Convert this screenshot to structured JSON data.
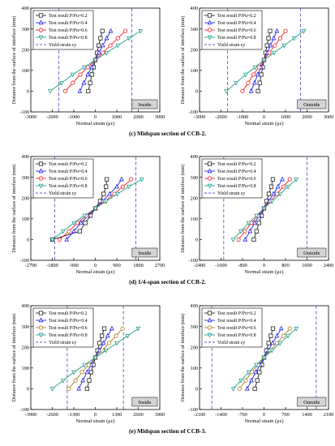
{
  "legend": {
    "entries": [
      "Test result P/Pu=0.2",
      "Test result P/Pu=0.4",
      "Test result P/Pu=0.6",
      "Test result P/Pu=0.8",
      "Yield strain εy"
    ]
  },
  "common": {
    "ylabel": "Distance from the surface of interface (mm)",
    "xlabel": "Normal strain (με)"
  },
  "colors": {
    "p02": "#222222",
    "p04": "#2222ee",
    "p06": "#ee2222",
    "p06_e": "#b07a1e",
    "p08": "#1f9e8c",
    "yield": "#6a55c8"
  },
  "rows": [
    {
      "caption": "(c) Midspan section of CCB-2.",
      "panels": [
        {
          "tag": "Inside",
          "chart_data": {
            "type": "line",
            "xlabel": "Normal strain (με)",
            "ylabel": "Distance from the surface of interface (mm)",
            "xlim": [
              -3000,
              3000
            ],
            "ylim": [
              -100,
              400
            ],
            "xticks": [
              "-3000",
              "-2000",
              "-1000",
              "0",
              "1000",
              "2000",
              "3000"
            ],
            "yticks": [
              "-100",
              "0",
              "100",
              "200",
              "300",
              "400"
            ],
            "yield_strain": [
              -1700,
              1700
            ],
            "series": [
              {
                "name": "Test result P/Pu=0.2",
                "x": [
                  -330,
                  -240,
                  -160,
                  -80,
                  0,
                  80,
                  160,
                  240,
                  330
                ],
                "y": [
                  0,
                  40,
                  80,
                  115,
                  150,
                  185,
                  220,
                  255,
                  290
                ]
              },
              {
                "name": "Test result P/Pu=0.4",
                "x": [
                  -720,
                  -530,
                  -350,
                  -170,
                  0,
                  170,
                  350,
                  530,
                  720
                ],
                "y": [
                  0,
                  40,
                  80,
                  115,
                  150,
                  185,
                  220,
                  255,
                  290
                ]
              },
              {
                "name": "Test result P/Pu=0.6",
                "x": [
                  -1400,
                  -1050,
                  -700,
                  -350,
                  0,
                  350,
                  700,
                  1050,
                  1400
                ],
                "y": [
                  0,
                  40,
                  80,
                  115,
                  150,
                  185,
                  220,
                  255,
                  290
                ]
              },
              {
                "name": "Test result P/Pu=0.8",
                "x": [
                  -2100,
                  -1570,
                  -1050,
                  -520,
                  0,
                  520,
                  1050,
                  1570,
                  2100
                ],
                "y": [
                  0,
                  40,
                  80,
                  115,
                  150,
                  185,
                  220,
                  255,
                  290
                ]
              }
            ]
          }
        },
        {
          "tag": "Outside",
          "chart_data": {
            "type": "line",
            "xlabel": "Normal strain (με)",
            "ylabel": "Distance from the surface of interface (mm)",
            "xlim": [
              -3000,
              3000
            ],
            "ylim": [
              -100,
              400
            ],
            "xticks": [
              "-3000",
              "-2000",
              "-1000",
              "0",
              "1000",
              "2000",
              "3000"
            ],
            "yticks": [
              "-100",
              "0",
              "100",
              "200",
              "300",
              "400"
            ],
            "yield_strain": [
              -1700,
              1700
            ],
            "series": [
              {
                "name": "Test result P/Pu=0.2",
                "x": [
                  -280,
                  -200,
                  -130,
                  -60,
                  0,
                  70,
                  140,
                  210,
                  280
                ],
                "y": [
                  0,
                  40,
                  80,
                  115,
                  150,
                  185,
                  220,
                  255,
                  290
                ]
              },
              {
                "name": "Test result P/Pu=0.4",
                "x": [
                  -600,
                  -440,
                  -290,
                  -140,
                  0,
                  150,
                  300,
                  450,
                  600
                ],
                "y": [
                  0,
                  40,
                  80,
                  115,
                  150,
                  185,
                  220,
                  255,
                  290
                ]
              },
              {
                "name": "Test result P/Pu=0.6",
                "x": [
                  -1000,
                  -740,
                  -490,
                  -240,
                  0,
                  250,
                  500,
                  750,
                  1000
                ],
                "y": [
                  0,
                  40,
                  80,
                  115,
                  150,
                  185,
                  220,
                  255,
                  290
                ]
              },
              {
                "name": "Test result P/Pu=0.8",
                "x": [
                  -1750,
                  -1300,
                  -860,
                  -420,
                  0,
                  470,
                  940,
                  1400,
                  1850
                ],
                "y": [
                  0,
                  40,
                  80,
                  115,
                  150,
                  185,
                  220,
                  255,
                  290
                ]
              }
            ]
          }
        }
      ]
    },
    {
      "caption": "(d) 1/4-span section of CCB-2.",
      "panels": [
        {
          "tag": "Inside",
          "chart_data": {
            "type": "line",
            "xlabel": "Normal strain (με)",
            "ylabel": "Distance from the surface of interface (mm)",
            "xlim": [
              -2700,
              2700
            ],
            "ylim": [
              -100,
              400
            ],
            "xticks": [
              "-2700",
              "-1800",
              "-900",
              "0",
              "900",
              "1800",
              "2700"
            ],
            "yticks": [
              "-100",
              "0",
              "100",
              "200",
              "300",
              "400"
            ],
            "yield_strain": [
              -1700,
              1700
            ],
            "series": [
              {
                "name": "Test result P/Pu=0.2",
                "x": [
                  -1800,
                  -650,
                  -420,
                  -200,
                  0,
                  200,
                  350,
                  450,
                  480
                ],
                "y": [
                  0,
                  40,
                  80,
                  115,
                  150,
                  185,
                  220,
                  255,
                  290
                ]
              },
              {
                "name": "Test result P/Pu=0.4",
                "x": [
                  -1200,
                  -900,
                  -600,
                  -300,
                  0,
                  300,
                  600,
                  900,
                  1100
                ],
                "y": [
                  0,
                  40,
                  80,
                  115,
                  150,
                  185,
                  220,
                  255,
                  290
                ]
              },
              {
                "name": "Test result P/Pu=0.6",
                "x": [
                  -1500,
                  -1100,
                  -750,
                  -370,
                  0,
                  400,
                  800,
                  1150,
                  1500
                ],
                "y": [
                  0,
                  40,
                  80,
                  115,
                  150,
                  185,
                  220,
                  255,
                  290
                ]
              },
              {
                "name": "Test result P/Pu=0.8",
                "x": [
                  -1800,
                  -1350,
                  -900,
                  -450,
                  0,
                  460,
                  920,
                  1400,
                  1950
                ],
                "y": [
                  0,
                  40,
                  80,
                  115,
                  150,
                  185,
                  220,
                  255,
                  290
                ]
              }
            ]
          }
        },
        {
          "tag": "Outside",
          "chart_data": {
            "type": "line",
            "xlabel": "Normal strain (με)",
            "ylabel": "Distance from the surface of interface (mm)",
            "xlim": [
              -2400,
              2400
            ],
            "ylim": [
              -100,
              400
            ],
            "xticks": [
              "-2400",
              "-1600",
              "-800",
              "0",
              "800",
              "1600",
              "2400"
            ],
            "yticks": [
              "-100",
              "0",
              "100",
              "200",
              "300",
              "400"
            ],
            "yield_strain": [
              -1500,
              1600
            ],
            "series": [
              {
                "name": "Test result P/Pu=0.2",
                "x": [
                  -380,
                  -280,
                  -190,
                  -90,
                  0,
                  90,
                  180,
                  270,
                  330
                ],
                "y": [
                  0,
                  40,
                  80,
                  115,
                  150,
                  185,
                  220,
                  255,
                  290
                ]
              },
              {
                "name": "Test result P/Pu=0.4",
                "x": [
                  -700,
                  -520,
                  -350,
                  -170,
                  0,
                  180,
                  350,
                  520,
                  680
                ],
                "y": [
                  0,
                  40,
                  80,
                  115,
                  150,
                  185,
                  220,
                  255,
                  290
                ]
              },
              {
                "name": "Test result P/Pu=0.6",
                "x": [
                  -950,
                  -710,
                  -470,
                  -230,
                  0,
                  240,
                  480,
                  720,
                  960
                ],
                "y": [
                  0,
                  40,
                  80,
                  115,
                  150,
                  185,
                  220,
                  255,
                  290
                ]
              },
              {
                "name": "Test result P/Pu=0.8",
                "x": [
                  -1150,
                  -860,
                  -570,
                  -280,
                  0,
                  300,
                  600,
                  900,
                  1200
                ],
                "y": [
                  0,
                  40,
                  80,
                  115,
                  150,
                  185,
                  220,
                  255,
                  290
                ]
              }
            ]
          }
        }
      ]
    },
    {
      "caption": "(e) Midspan section of CCB-3.",
      "panels": [
        {
          "tag": "Inside",
          "chart_data": {
            "type": "line",
            "xlabel": "Normal strain (με)",
            "ylabel": "Distance from the surface of interface (mm)",
            "xlim": [
              -3900,
              3900
            ],
            "ylim": [
              -100,
              400
            ],
            "xticks": [
              "-3900",
              "-2600",
              "-1300",
              "0",
              "1300",
              "2600",
              "3900"
            ],
            "yticks": [
              "-100",
              "0",
              "100",
              "200",
              "300",
              "400"
            ],
            "yield_strain": [
              -1700,
              1700
            ],
            "series": [
              {
                "name": "Test result P/Pu=0.2",
                "x": [
                  -500,
                  -370,
                  -250,
                  -120,
                  0,
                  130,
                  260,
                  400,
                  540
                ],
                "y": [
                  0,
                  40,
                  80,
                  115,
                  150,
                  185,
                  220,
                  255,
                  290
                ]
              },
              {
                "name": "Test result P/Pu=0.4",
                "x": [
                  -1000,
                  -750,
                  -500,
                  -250,
                  0,
                  250,
                  500,
                  750,
                  1000
                ],
                "y": [
                  0,
                  40,
                  80,
                  115,
                  150,
                  185,
                  220,
                  255,
                  290
                ]
              },
              {
                "name": "Test result P/Pu=0.6",
                "x": [
                  -1600,
                  -1200,
                  -800,
                  -400,
                  0,
                  420,
                  840,
                  1250,
                  1650
                ],
                "y": [
                  0,
                  40,
                  80,
                  115,
                  150,
                  185,
                  220,
                  255,
                  290
                ]
              },
              {
                "name": "Test result P/Pu=0.8",
                "x": [
                  -2600,
                  -1950,
                  -1300,
                  -650,
                  0,
                  650,
                  1300,
                  1950,
                  2600
                ],
                "y": [
                  0,
                  40,
                  80,
                  115,
                  150,
                  185,
                  220,
                  255,
                  290
                ]
              }
            ]
          }
        },
        {
          "tag": "Outside",
          "chart_data": {
            "type": "line",
            "xlabel": "Normal strain (με)",
            "ylabel": "Distance from the surface of interface (mm)",
            "xlim": [
              -2100,
              2100
            ],
            "ylim": [
              -100,
              400
            ],
            "xticks": [
              "-2100",
              "-1400",
              "-700",
              "0",
              "700",
              "1400",
              "2100"
            ],
            "yticks": [
              "-100",
              "0",
              "100",
              "200",
              "300",
              "400"
            ],
            "yield_strain": [
              -1700,
              1700
            ],
            "series": [
              {
                "name": "Test result P/Pu=0.2",
                "x": [
                  -300,
                  -220,
                  -150,
                  -70,
                  0,
                  75,
                  150,
                  220,
                  290
                ],
                "y": [
                  0,
                  40,
                  80,
                  115,
                  150,
                  185,
                  220,
                  255,
                  290
                ]
              },
              {
                "name": "Test result P/Pu=0.4",
                "x": [
                  -550,
                  -410,
                  -270,
                  -130,
                  0,
                  140,
                  280,
                  420,
                  560
                ],
                "y": [
                  0,
                  40,
                  80,
                  115,
                  150,
                  185,
                  220,
                  255,
                  290
                ]
              },
              {
                "name": "Test result P/Pu=0.6",
                "x": [
                  -800,
                  -600,
                  -400,
                  -200,
                  0,
                  210,
                  420,
                  630,
                  840
                ],
                "y": [
                  0,
                  40,
                  80,
                  115,
                  150,
                  185,
                  220,
                  255,
                  290
                ]
              },
              {
                "name": "Test result P/Pu=0.8",
                "x": [
                  -1000,
                  -750,
                  -500,
                  -250,
                  0,
                  260,
                  520,
                  780,
                  1050
                ],
                "y": [
                  0,
                  40,
                  80,
                  115,
                  150,
                  185,
                  220,
                  255,
                  290
                ]
              }
            ]
          }
        }
      ]
    }
  ]
}
